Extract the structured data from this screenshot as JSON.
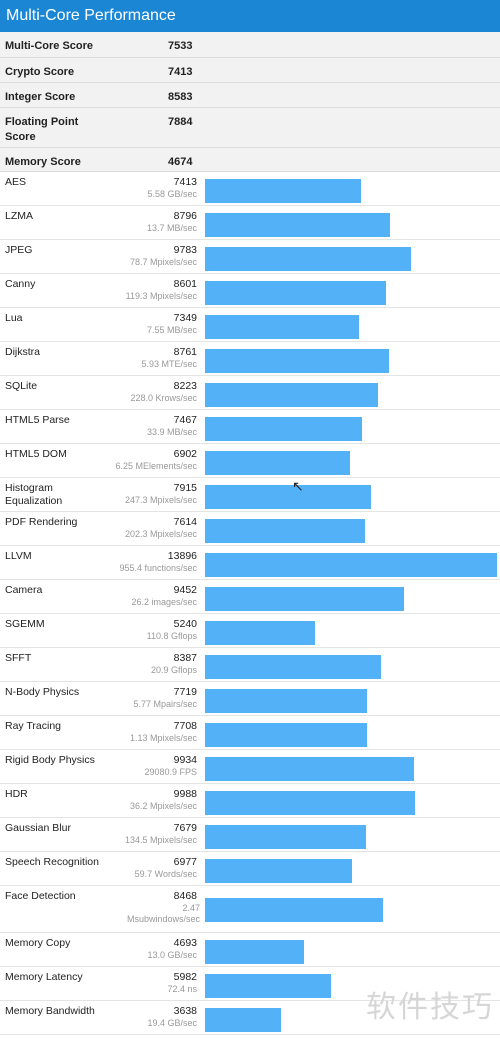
{
  "header": {
    "title": "Multi-Core Performance"
  },
  "summary": [
    {
      "label": "Multi-Core Score",
      "value": "7533"
    },
    {
      "label": "Crypto Score",
      "value": "7413"
    },
    {
      "label": "Integer Score",
      "value": "8583"
    },
    {
      "label": "Floating Point Score",
      "value": "7884"
    },
    {
      "label": "Memory Score",
      "value": "4674"
    }
  ],
  "benchmarks": [
    {
      "name": "AES",
      "score": "7413",
      "rate": "5.58 GB/sec"
    },
    {
      "name": "LZMA",
      "score": "8796",
      "rate": "13.7 MB/sec"
    },
    {
      "name": "JPEG",
      "score": "9783",
      "rate": "78.7 Mpixels/sec"
    },
    {
      "name": "Canny",
      "score": "8601",
      "rate": "119.3 Mpixels/sec"
    },
    {
      "name": "Lua",
      "score": "7349",
      "rate": "7.55 MB/sec"
    },
    {
      "name": "Dijkstra",
      "score": "8761",
      "rate": "5.93 MTE/sec"
    },
    {
      "name": "SQLite",
      "score": "8223",
      "rate": "228.0 Krows/sec"
    },
    {
      "name": "HTML5 Parse",
      "score": "7467",
      "rate": "33.9 MB/sec"
    },
    {
      "name": "HTML5 DOM",
      "score": "6902",
      "rate": "6.25 MElements/sec"
    },
    {
      "name": "Histogram Equalization",
      "score": "7915",
      "rate": "247.3 Mpixels/sec"
    },
    {
      "name": "PDF Rendering",
      "score": "7614",
      "rate": "202.3 Mpixels/sec"
    },
    {
      "name": "LLVM",
      "score": "13896",
      "rate": "955.4 functions/sec"
    },
    {
      "name": "Camera",
      "score": "9452",
      "rate": "26.2 images/sec"
    },
    {
      "name": "SGEMM",
      "score": "5240",
      "rate": "110.8 Gflops"
    },
    {
      "name": "SFFT",
      "score": "8387",
      "rate": "20.9 Gflops"
    },
    {
      "name": "N-Body Physics",
      "score": "7719",
      "rate": "5.77 Mpairs/sec"
    },
    {
      "name": "Ray Tracing",
      "score": "7708",
      "rate": "1.13 Mpixels/sec"
    },
    {
      "name": "Rigid Body Physics",
      "score": "9934",
      "rate": "29080.9 FPS"
    },
    {
      "name": "HDR",
      "score": "9988",
      "rate": "36.2 Mpixels/sec"
    },
    {
      "name": "Gaussian Blur",
      "score": "7679",
      "rate": "134.5 Mpixels/sec"
    },
    {
      "name": "Speech Recognition",
      "score": "6977",
      "rate": "59.7 Words/sec"
    },
    {
      "name": "Face Detection",
      "score": "8468",
      "rate": "2.47 Msubwindows/sec"
    },
    {
      "name": "Memory Copy",
      "score": "4693",
      "rate": "13.0 GB/sec"
    },
    {
      "name": "Memory Latency",
      "score": "5982",
      "rate": "72.4 ns"
    },
    {
      "name": "Memory Bandwidth",
      "score": "3638",
      "rate": "19.4 GB/sec"
    }
  ],
  "watermark": "软件技巧",
  "colors": {
    "header": "#1b87d4",
    "bar": "#53b1f7"
  },
  "bar_scale_max": 13896
}
